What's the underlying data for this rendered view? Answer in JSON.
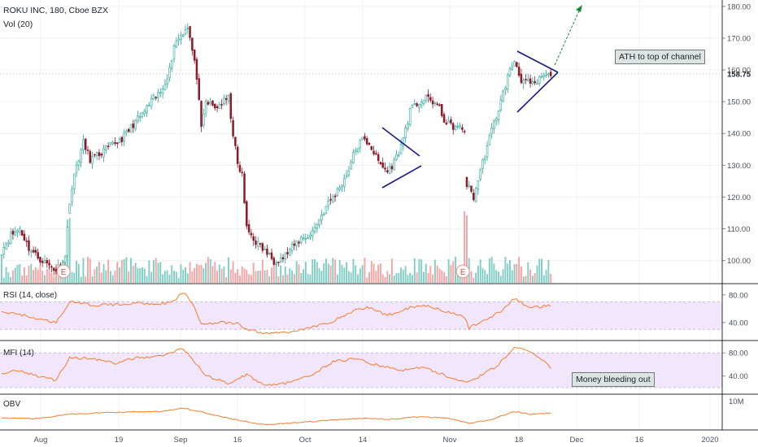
{
  "header": {
    "title": "ROKU INC, 180, Cboe BZX",
    "volume_label": "Vol (20)"
  },
  "panes": {
    "rsi_label": "RSI (14, close)",
    "mfi_label": "MFI (14)",
    "obv_label": "OBV"
  },
  "annotations": {
    "ath_note": "ATH to top of channel",
    "mfi_note": "Money bleeding out",
    "earnings_marker": "E"
  },
  "colors": {
    "up": "#26a69a",
    "down": "#8b1a2a",
    "vol_up": "#7fcdc3",
    "vol_down": "#f5a3a3",
    "indicator_line": "#f57c2c",
    "band": "#f1e6fb",
    "trend": "#1a1a8e",
    "arrow": "#1b8a2f"
  },
  "chart_data": [
    {
      "type": "candlestick",
      "title": "ROKU INC, 180, Cboe BZX",
      "x_ticks": [
        "Aug",
        "19",
        "Sep",
        "16",
        "Oct",
        "14",
        "Nov",
        "18",
        "Dec",
        "16",
        "2020"
      ],
      "y_ticks": [
        100,
        110,
        120,
        130,
        140,
        150,
        160,
        170,
        180
      ],
      "ylim": [
        93,
        182
      ],
      "last_price": "158.75",
      "earnings_markers": [
        "Aug",
        "Nov"
      ],
      "anchors": [
        [
          0,
          103
        ],
        [
          4,
          108
        ],
        [
          8,
          110
        ],
        [
          12,
          104
        ],
        [
          16,
          101
        ],
        [
          20,
          99
        ],
        [
          24,
          97
        ],
        [
          28,
          101
        ],
        [
          30,
          119
        ],
        [
          33,
          130
        ],
        [
          36,
          137
        ],
        [
          39,
          132
        ],
        [
          42,
          133
        ],
        [
          46,
          135
        ],
        [
          50,
          137
        ],
        [
          54,
          139
        ],
        [
          58,
          143
        ],
        [
          62,
          146
        ],
        [
          66,
          150
        ],
        [
          70,
          153
        ],
        [
          74,
          160
        ],
        [
          76,
          168
        ],
        [
          78,
          170
        ],
        [
          80,
          172
        ],
        [
          82,
          174
        ],
        [
          84,
          166
        ],
        [
          86,
          158
        ],
        [
          88,
          141
        ],
        [
          90,
          150
        ],
        [
          94,
          148
        ],
        [
          98,
          150
        ],
        [
          100,
          151
        ],
        [
          102,
          140
        ],
        [
          104,
          130
        ],
        [
          106,
          127
        ],
        [
          108,
          110
        ],
        [
          112,
          106
        ],
        [
          116,
          103
        ],
        [
          120,
          100
        ],
        [
          124,
          101
        ],
        [
          128,
          104
        ],
        [
          132,
          107
        ],
        [
          136,
          108
        ],
        [
          140,
          113
        ],
        [
          144,
          118
        ],
        [
          148,
          122
        ],
        [
          152,
          127
        ],
        [
          156,
          135
        ],
        [
          159,
          138
        ],
        [
          162,
          137
        ],
        [
          166,
          131
        ],
        [
          170,
          128
        ],
        [
          173,
          131
        ],
        [
          176,
          136
        ],
        [
          180,
          147
        ],
        [
          184,
          150
        ],
        [
          188,
          151
        ],
        [
          192,
          149
        ],
        [
          196,
          143
        ],
        [
          200,
          142
        ],
        [
          204,
          141
        ],
        [
          205,
          124
        ],
        [
          208,
          120
        ],
        [
          212,
          131
        ],
        [
          216,
          141
        ],
        [
          220,
          150
        ],
        [
          223,
          158
        ],
        [
          226,
          163
        ],
        [
          229,
          157
        ],
        [
          232,
          156
        ],
        [
          235,
          155
        ],
        [
          238,
          158
        ],
        [
          241,
          158
        ],
        [
          242,
          159
        ]
      ]
    },
    {
      "type": "line",
      "name": "RSI (14, close)",
      "y_ticks": [
        40,
        80
      ],
      "band": [
        30,
        70
      ],
      "anchors": [
        [
          0,
          55
        ],
        [
          8,
          52
        ],
        [
          16,
          45
        ],
        [
          24,
          40
        ],
        [
          30,
          70
        ],
        [
          40,
          65
        ],
        [
          50,
          66
        ],
        [
          60,
          68
        ],
        [
          70,
          67
        ],
        [
          76,
          70
        ],
        [
          80,
          84
        ],
        [
          84,
          68
        ],
        [
          88,
          38
        ],
        [
          96,
          40
        ],
        [
          104,
          38
        ],
        [
          108,
          30
        ],
        [
          116,
          24
        ],
        [
          126,
          26
        ],
        [
          136,
          32
        ],
        [
          146,
          42
        ],
        [
          156,
          58
        ],
        [
          162,
          62
        ],
        [
          170,
          50
        ],
        [
          180,
          62
        ],
        [
          188,
          65
        ],
        [
          196,
          55
        ],
        [
          204,
          48
        ],
        [
          206,
          32
        ],
        [
          212,
          42
        ],
        [
          220,
          56
        ],
        [
          226,
          75
        ],
        [
          232,
          62
        ],
        [
          242,
          64
        ]
      ]
    },
    {
      "type": "line",
      "name": "MFI (14)",
      "y_ticks": [
        40,
        80
      ],
      "band": [
        20,
        80
      ],
      "anchors": [
        [
          0,
          45
        ],
        [
          8,
          50
        ],
        [
          16,
          40
        ],
        [
          24,
          33
        ],
        [
          30,
          72
        ],
        [
          40,
          70
        ],
        [
          50,
          62
        ],
        [
          60,
          72
        ],
        [
          70,
          74
        ],
        [
          80,
          88
        ],
        [
          84,
          70
        ],
        [
          90,
          40
        ],
        [
          100,
          28
        ],
        [
          108,
          42
        ],
        [
          116,
          24
        ],
        [
          126,
          28
        ],
        [
          136,
          40
        ],
        [
          146,
          65
        ],
        [
          156,
          70
        ],
        [
          166,
          58
        ],
        [
          176,
          50
        ],
        [
          186,
          55
        ],
        [
          196,
          40
        ],
        [
          204,
          30
        ],
        [
          210,
          38
        ],
        [
          218,
          56
        ],
        [
          226,
          90
        ],
        [
          232,
          82
        ],
        [
          238,
          70
        ],
        [
          242,
          55
        ]
      ]
    },
    {
      "type": "line",
      "name": "OBV",
      "y_ticks": [
        "10M"
      ],
      "anchors": [
        [
          0,
          0.3
        ],
        [
          16,
          0.28
        ],
        [
          30,
          0.45
        ],
        [
          50,
          0.52
        ],
        [
          70,
          0.55
        ],
        [
          80,
          0.68
        ],
        [
          90,
          0.5
        ],
        [
          104,
          0.22
        ],
        [
          116,
          0.05
        ],
        [
          130,
          0.12
        ],
        [
          146,
          0.22
        ],
        [
          160,
          0.3
        ],
        [
          170,
          0.25
        ],
        [
          185,
          0.35
        ],
        [
          196,
          0.3
        ],
        [
          206,
          0.1
        ],
        [
          216,
          0.25
        ],
        [
          226,
          0.55
        ],
        [
          233,
          0.45
        ],
        [
          242,
          0.48
        ]
      ]
    }
  ]
}
